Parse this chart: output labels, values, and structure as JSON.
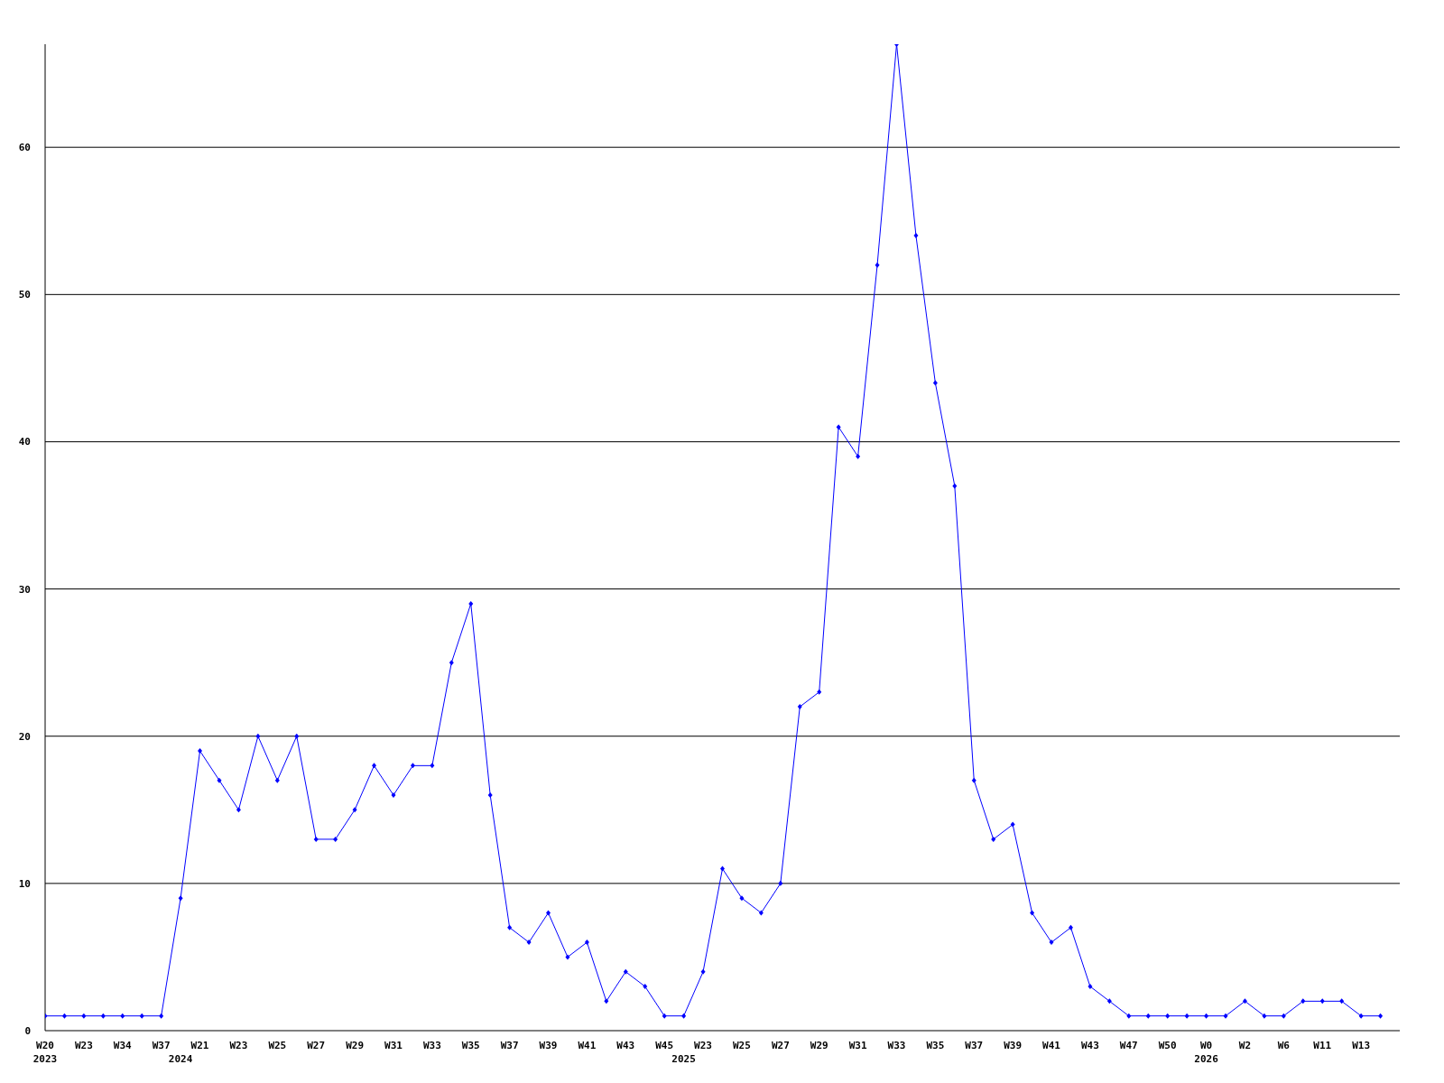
{
  "chart_data": {
    "type": "line",
    "categories": [
      "W20\n2023",
      null,
      "W23",
      null,
      "W34",
      null,
      "W37",
      "\n2024",
      "W21",
      null,
      "W23",
      null,
      "W25",
      null,
      "W27",
      null,
      "W29",
      null,
      "W31",
      null,
      "W33",
      null,
      "W35",
      null,
      "W37",
      null,
      "W39",
      null,
      "W41",
      null,
      "W43",
      null,
      "W45",
      "\n2025",
      "W23",
      null,
      "W25",
      null,
      "W27",
      null,
      "W29",
      null,
      "W31",
      null,
      "W33",
      null,
      "W35",
      null,
      "W37",
      null,
      "W39",
      null,
      "W41",
      null,
      "W43",
      null,
      "W47",
      null,
      "W50",
      null,
      "W0\n2026",
      null,
      "W2",
      null,
      "W6",
      null,
      "W11",
      null,
      "W13",
      null
    ],
    "series": [
      {
        "color": "#0000ff",
        "values": [
          1,
          1,
          1,
          1,
          1,
          1,
          1,
          9,
          19,
          17,
          15,
          20,
          17,
          20,
          13,
          13,
          15,
          18,
          16,
          18,
          18,
          25,
          29,
          16,
          7,
          6,
          8,
          5,
          6,
          2,
          4,
          3,
          1,
          1,
          4,
          11,
          9,
          8,
          10,
          22,
          23,
          41,
          39,
          52,
          67,
          54,
          44,
          37,
          17,
          13,
          14,
          8,
          6,
          7,
          3,
          2,
          1,
          1,
          1,
          1,
          1,
          1,
          2,
          1,
          1,
          2,
          2,
          2,
          1,
          1
        ]
      }
    ],
    "ylim": [
      0,
      67
    ],
    "yticks": [
      0,
      10,
      20,
      30,
      40,
      50,
      60
    ],
    "grid": "y",
    "marker": "diamond",
    "line_style": "solid",
    "legend": false
  }
}
